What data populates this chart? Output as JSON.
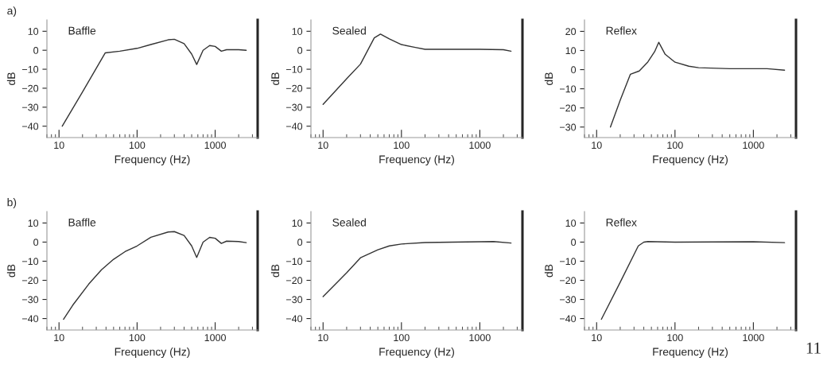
{
  "chart_data": [
    {
      "type": "line",
      "xlabel": "Frequency (Hz)",
      "ylabel": "dB",
      "annotations": [
        "Baffle",
        "a)"
      ],
      "log": "x",
      "grid": false,
      "legend": false,
      "xlim": [
        7,
        3500
      ],
      "xticks": [
        10,
        100,
        1000
      ],
      "ylim": [
        -46,
        16
      ],
      "yticks": [
        {
          "value": -40,
          "label": "−40"
        },
        {
          "value": -30,
          "label": "−30"
        },
        {
          "value": -20,
          "label": "−20"
        },
        {
          "value": -10,
          "label": "−10"
        },
        0,
        10
      ],
      "series": [
        {
          "color": "#333333",
          "x": [
            11,
            20,
            39,
            60,
            100,
            150,
            250,
            300,
            400,
            500,
            580,
            700,
            850,
            1000,
            1200,
            1400,
            2000,
            2500
          ],
          "values": [
            -40,
            -22,
            -1.4,
            -0.5,
            1,
            3,
            5.5,
            5.8,
            3.5,
            -2,
            -7.5,
            0,
            2.5,
            2,
            -0.5,
            0.3,
            0.3,
            0
          ]
        }
      ]
    },
    {
      "type": "line",
      "xlabel": "Frequency (Hz)",
      "ylabel": "dB",
      "annotations": [
        "Sealed"
      ],
      "log": "x",
      "grid": false,
      "legend": false,
      "xlim": [
        7,
        3500
      ],
      "xticks": [
        10,
        100,
        1000
      ],
      "ylim": [
        -46,
        16
      ],
      "yticks": [
        {
          "value": -40,
          "label": "−40"
        },
        {
          "value": -30,
          "label": "−30"
        },
        {
          "value": -20,
          "label": "−20"
        },
        {
          "value": -10,
          "label": "−10"
        },
        0,
        10
      ],
      "series": [
        {
          "color": "#333333",
          "x": [
            10,
            20,
            30,
            45,
            54,
            70,
            100,
            150,
            200,
            1000,
            2000,
            2500
          ],
          "values": [
            -28.5,
            -15,
            -7.3,
            6.5,
            8.5,
            6,
            3,
            1.5,
            0.5,
            0.5,
            0.3,
            -0.5
          ]
        }
      ]
    },
    {
      "type": "line",
      "xlabel": "Frequency (Hz)",
      "ylabel": "dB",
      "annotations": [
        "Reflex"
      ],
      "log": "x",
      "grid": false,
      "legend": false,
      "xlim": [
        7,
        3500
      ],
      "xticks": [
        10,
        100,
        1000
      ],
      "ylim": [
        -35.5,
        26
      ],
      "yticks": [
        {
          "value": -30,
          "label": "−30"
        },
        {
          "value": -20,
          "label": "−20"
        },
        {
          "value": -10,
          "label": "−10"
        },
        0,
        10,
        20
      ],
      "series": [
        {
          "color": "#333333",
          "x": [
            15,
            20,
            27,
            35,
            45,
            55,
            62,
            75,
            100,
            150,
            200,
            500,
            1500,
            2500
          ],
          "values": [
            -30,
            -16,
            -2.4,
            -0.7,
            4,
            9.4,
            14.3,
            8,
            3.9,
            1.8,
            1,
            0.5,
            0.5,
            -0.3
          ]
        }
      ]
    },
    {
      "type": "line",
      "xlabel": "Frequency (Hz)",
      "ylabel": "dB",
      "annotations": [
        "Baffle",
        "b)"
      ],
      "log": "x",
      "grid": false,
      "legend": false,
      "xlim": [
        7,
        3500
      ],
      "xticks": [
        10,
        100,
        1000
      ],
      "ylim": [
        -46,
        16
      ],
      "yticks": [
        {
          "value": -40,
          "label": "−40"
        },
        {
          "value": -30,
          "label": "−30"
        },
        {
          "value": -20,
          "label": "−20"
        },
        {
          "value": -10,
          "label": "−10"
        },
        0,
        10
      ],
      "series": [
        {
          "color": "#333333",
          "x": [
            11.4,
            15,
            24,
            35,
            50,
            70,
            100,
            150,
            250,
            300,
            400,
            500,
            580,
            700,
            850,
            1000,
            1200,
            1400,
            2000,
            2500
          ],
          "values": [
            -40.4,
            -33,
            -22,
            -14.5,
            -9,
            -5,
            -2,
            2.5,
            5.3,
            5.5,
            3.5,
            -2,
            -8,
            0,
            2.5,
            2,
            -0.7,
            0.5,
            0.3,
            -0.3
          ]
        }
      ]
    },
    {
      "type": "line",
      "xlabel": "Frequency (Hz)",
      "ylabel": "dB",
      "annotations": [
        "Sealed"
      ],
      "log": "x",
      "grid": false,
      "legend": false,
      "xlim": [
        7,
        3500
      ],
      "xticks": [
        10,
        100,
        1000
      ],
      "ylim": [
        -46,
        16
      ],
      "yticks": [
        {
          "value": -40,
          "label": "−40"
        },
        {
          "value": -30,
          "label": "−30"
        },
        {
          "value": -20,
          "label": "−20"
        },
        {
          "value": -10,
          "label": "−10"
        },
        0,
        10
      ],
      "series": [
        {
          "color": "#333333",
          "x": [
            10,
            20,
            30,
            50,
            70,
            100,
            200,
            1000,
            1500,
            2500
          ],
          "values": [
            -28.5,
            -16,
            -8.2,
            -4,
            -2,
            -1,
            -0.2,
            0.2,
            0.3,
            -0.5
          ]
        }
      ]
    },
    {
      "type": "line",
      "xlabel": "Frequency (Hz)",
      "ylabel": "dB",
      "annotations": [
        "Reflex",
        "11"
      ],
      "log": "x",
      "grid": false,
      "legend": false,
      "xlim": [
        7,
        3500
      ],
      "xticks": [
        10,
        100,
        1000
      ],
      "ylim": [
        -46,
        16
      ],
      "yticks": [
        {
          "value": -40,
          "label": "−40"
        },
        {
          "value": -30,
          "label": "−30"
        },
        {
          "value": -20,
          "label": "−20"
        },
        {
          "value": -10,
          "label": "−10"
        },
        0,
        10
      ],
      "series": [
        {
          "color": "#333333",
          "x": [
            11.5,
            20,
            34,
            40,
            45,
            100,
            1000,
            2500
          ],
          "values": [
            -40.4,
            -21,
            -2,
            0,
            0.3,
            0,
            0.2,
            -0.3
          ]
        }
      ]
    }
  ]
}
